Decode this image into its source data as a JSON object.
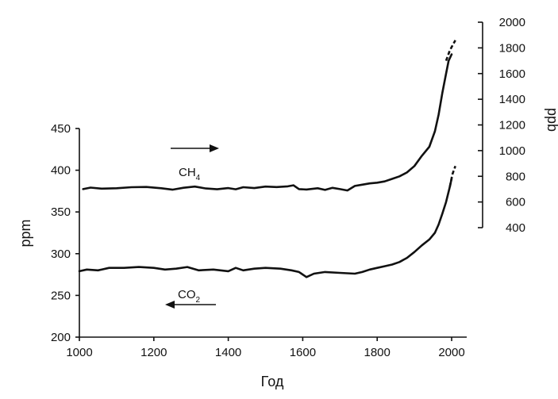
{
  "chart_data": {
    "type": "line",
    "xlabel": "Год",
    "ylabel_left": "ppm",
    "ylabel_right": "ppb",
    "xlim": [
      1000,
      2000
    ],
    "ylim_left": [
      200,
      450
    ],
    "ylim_right": [
      400,
      2000
    ],
    "x_ticks": [
      "1000",
      "1200",
      "1400",
      "1600",
      "1800",
      "2000"
    ],
    "y_left_ticks": [
      "200",
      "250",
      "300",
      "350",
      "400",
      "450"
    ],
    "y_right_ticks": [
      "400",
      "600",
      "800",
      "1000",
      "1200",
      "1400",
      "1600",
      "1800",
      "2000"
    ],
    "series": [
      {
        "label_main": "CH",
        "label_sub": "4",
        "axis": "right",
        "arrow": "right",
        "x": [
          1010,
          1030,
          1060,
          1100,
          1140,
          1180,
          1220,
          1250,
          1280,
          1310,
          1340,
          1370,
          1400,
          1420,
          1440,
          1470,
          1500,
          1530,
          1560,
          1575,
          1590,
          1610,
          1640,
          1660,
          1680,
          1700,
          1720,
          1740,
          1760,
          1780,
          1800,
          1820,
          1840,
          1860,
          1880,
          1900,
          1920,
          1940,
          1955,
          1965,
          1975,
          1985,
          1992,
          2000
        ],
        "y": [
          700,
          712,
          704,
          707,
          715,
          717,
          707,
          696,
          711,
          720,
          705,
          699,
          708,
          699,
          715,
          708,
          720,
          716,
          722,
          730,
          700,
          697,
          707,
          694,
          710,
          700,
          690,
          725,
          735,
          745,
          750,
          760,
          780,
          800,
          830,
          880,
          960,
          1030,
          1150,
          1280,
          1450,
          1600,
          1700,
          1750
        ],
        "dashed_x": [
          1985,
          1995,
          2010
        ],
        "dashed_y": [
          1700,
          1780,
          1860
        ]
      },
      {
        "label_main": "CO",
        "label_sub": "2",
        "axis": "left",
        "arrow": "left",
        "x": [
          1000,
          1020,
          1050,
          1080,
          1120,
          1160,
          1200,
          1230,
          1260,
          1290,
          1320,
          1360,
          1400,
          1420,
          1440,
          1470,
          1500,
          1540,
          1570,
          1590,
          1610,
          1630,
          1660,
          1700,
          1740,
          1760,
          1780,
          1800,
          1820,
          1840,
          1860,
          1880,
          1900,
          1920,
          1940,
          1955,
          1965,
          1975,
          1985,
          1995,
          2000
        ],
        "y": [
          279,
          281,
          280,
          283,
          283,
          284,
          283,
          281,
          282,
          284,
          280,
          281,
          279,
          283,
          280,
          282,
          283,
          282,
          280,
          278,
          272,
          276,
          278,
          277,
          276,
          278,
          281,
          283,
          285,
          287,
          290,
          295,
          302,
          310,
          317,
          325,
          335,
          348,
          362,
          380,
          390
        ],
        "dashed_x": [
          1995,
          2002,
          2010
        ],
        "dashed_y": [
          380,
          395,
          405
        ]
      }
    ]
  }
}
